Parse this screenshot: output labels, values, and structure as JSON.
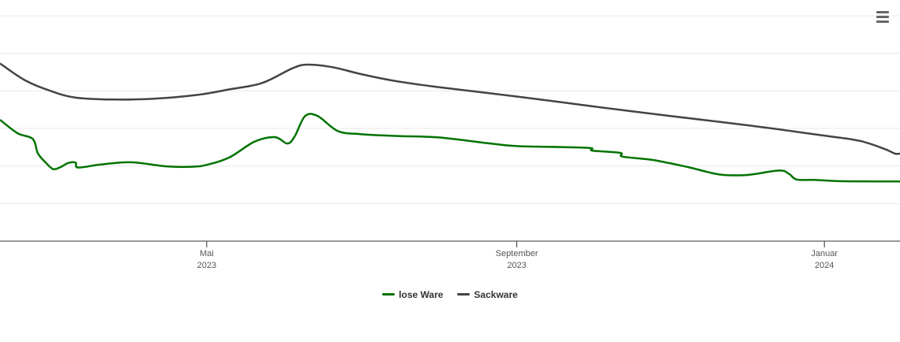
{
  "chart_data": {
    "type": "line",
    "grid": true,
    "legend_position": "bottom-center",
    "x_ticks": [
      {
        "date": "2023-05-01",
        "line1": "Mai",
        "line2": "2023"
      },
      {
        "date": "2023-09-01",
        "line1": "September",
        "line2": "2023"
      },
      {
        "date": "2024-01-01",
        "line1": "Januar",
        "line2": "2024"
      }
    ],
    "xlim": [
      "2023-02-08",
      "2024-01-31"
    ],
    "series": [
      {
        "name": "lose Ware",
        "color": "#007300",
        "points": [
          [
            "2023-02-08",
            62.3
          ],
          [
            "2023-02-15",
            58.7
          ],
          [
            "2023-02-21",
            57.2
          ],
          [
            "2023-02-23",
            53.4
          ],
          [
            "2023-02-26",
            51.0
          ],
          [
            "2023-03-01",
            49.2
          ],
          [
            "2023-03-04",
            49.7
          ],
          [
            "2023-03-07",
            50.8
          ],
          [
            "2023-03-10",
            50.9
          ],
          [
            "2023-03-11",
            49.6
          ],
          [
            "2023-03-20",
            50.4
          ],
          [
            "2023-04-01",
            51.0
          ],
          [
            "2023-04-15",
            49.9
          ],
          [
            "2023-04-25",
            49.8
          ],
          [
            "2023-05-01",
            50.3
          ],
          [
            "2023-05-10",
            52.3
          ],
          [
            "2023-05-20",
            56.5
          ],
          [
            "2023-05-28",
            57.7
          ],
          [
            "2023-06-02",
            56.0
          ],
          [
            "2023-06-05",
            58.0
          ],
          [
            "2023-06-09",
            63.3
          ],
          [
            "2023-06-14",
            63.3
          ],
          [
            "2023-06-22",
            59.3
          ],
          [
            "2023-07-01",
            58.5
          ],
          [
            "2023-07-15",
            58.0
          ],
          [
            "2023-08-01",
            57.6
          ],
          [
            "2023-08-20",
            56.1
          ],
          [
            "2023-09-01",
            55.3
          ],
          [
            "2023-09-15",
            55.1
          ],
          [
            "2023-09-30",
            54.8
          ],
          [
            "2023-10-01",
            54.1
          ],
          [
            "2023-10-12",
            53.5
          ],
          [
            "2023-10-13",
            52.5
          ],
          [
            "2023-10-25",
            51.6
          ],
          [
            "2023-11-08",
            49.7
          ],
          [
            "2023-11-20",
            47.8
          ],
          [
            "2023-12-01",
            47.6
          ],
          [
            "2023-12-14",
            48.8
          ],
          [
            "2023-12-18",
            47.9
          ],
          [
            "2023-12-21",
            46.4
          ],
          [
            "2023-12-28",
            46.3
          ],
          [
            "2024-01-06",
            46.0
          ],
          [
            "2024-01-20",
            45.9
          ],
          [
            "2024-01-31",
            45.9
          ]
        ]
      },
      {
        "name": "Sackware",
        "color": "#444444",
        "points": [
          [
            "2023-02-08",
            77.3
          ],
          [
            "2023-02-18",
            72.8
          ],
          [
            "2023-02-28",
            70.0
          ],
          [
            "2023-03-10",
            68.2
          ],
          [
            "2023-03-25",
            67.7
          ],
          [
            "2023-04-10",
            67.9
          ],
          [
            "2023-04-28",
            69.0
          ],
          [
            "2023-05-10",
            70.4
          ],
          [
            "2023-05-23",
            72.1
          ],
          [
            "2023-06-04",
            76.0
          ],
          [
            "2023-06-10",
            77.0
          ],
          [
            "2023-06-20",
            76.3
          ],
          [
            "2023-07-01",
            74.5
          ],
          [
            "2023-07-15",
            72.6
          ],
          [
            "2023-08-01",
            71.0
          ],
          [
            "2023-09-01",
            68.5
          ],
          [
            "2023-10-01",
            65.9
          ],
          [
            "2023-11-01",
            63.3
          ],
          [
            "2023-12-01",
            60.9
          ],
          [
            "2024-01-01",
            58.1
          ],
          [
            "2024-01-15",
            56.7
          ],
          [
            "2024-01-25",
            54.5
          ],
          [
            "2024-01-29",
            53.3
          ],
          [
            "2024-01-31",
            53.3
          ]
        ]
      }
    ]
  }
}
